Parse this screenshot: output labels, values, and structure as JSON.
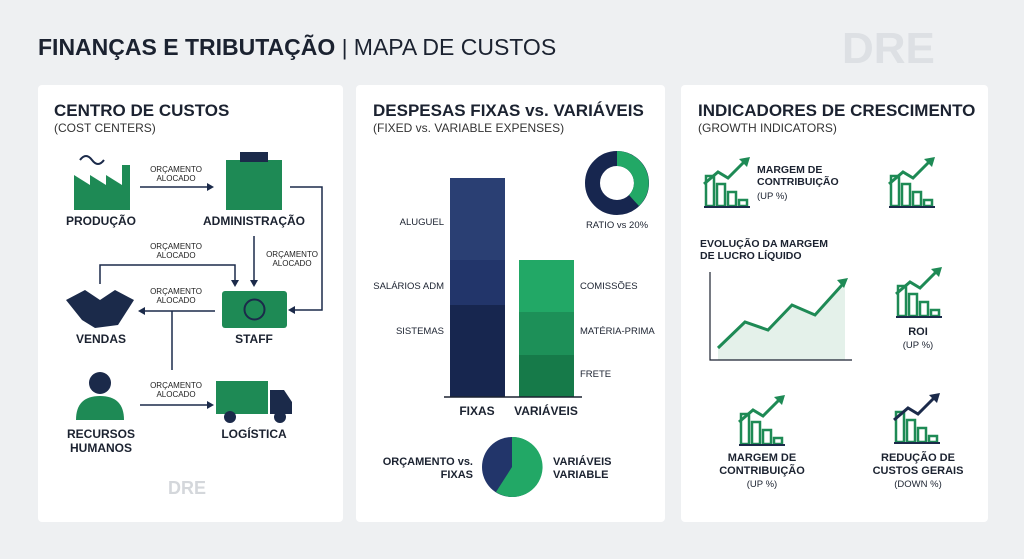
{
  "header": {
    "title": "FINANÇAS E TRIBUTAÇÃO",
    "subtitle": "MAPA DE CUSTOS",
    "logo": "DRE"
  },
  "panels": [
    {
      "title": "CENTRO DE CUSTOS",
      "subtitle": "(COST CENTERS)",
      "nodes": [
        {
          "label": "PRODUÇÃO"
        },
        {
          "label": "ADMINISTRAÇÃO"
        },
        {
          "label": "VENDAS"
        },
        {
          "label": "STAFF"
        },
        {
          "label": "RECURSOS HUMANOS"
        },
        {
          "label": "LOGÍSTICA"
        }
      ],
      "edges": [
        {
          "label": "ORÇAMENTO ALOCADO"
        },
        {
          "label": "ORÇAMENTO ALOCADO"
        },
        {
          "label": "ORÇAMENTO ALOCADO"
        },
        {
          "label": "ORÇAMENTO ALOCADO"
        },
        {
          "label": "ORÇAMENTO ALOCADO"
        }
      ],
      "logo": "DRE"
    },
    {
      "title": "DESPESAS FIXAS vs. VARIÁVEIS",
      "subtitle": "(FIXED vs. VARIABLE EXPENSES)",
      "fixed_items": [
        "ALUGUEL",
        "SALÁRIOS ADM",
        "SISTEMAS"
      ],
      "variable_items": [
        "COMISSÕES",
        "MATÉRIA-PRIMA",
        "FRETE"
      ],
      "categories": [
        "FIXAS",
        "VARIÁVEIS"
      ],
      "donut_label": "RATIO vs 20%",
      "pie_left": "ORÇAMENTO vs. FIXAS",
      "pie_right": "VARIÁVEIS VARIABLE"
    },
    {
      "title": "INDICADORES DE CRESCIMENTO",
      "subtitle": "(GROWTH INDICATORS)",
      "chart_title": "EVOLUÇÃO DA MARGEM DE LUCRO LÍQUIDO",
      "indicators": [
        {
          "label": "MARGEM DE CONTRIBUIÇÃO",
          "note": "(UP %)"
        },
        {
          "label": "ROI",
          "note": "(UP %)"
        },
        {
          "label": "MARGEM DE CONTRIBUIÇÃO",
          "note": "(UP %)"
        },
        {
          "label": "REDUÇÃO DE CUSTOS GERAIS",
          "note": "(DOWN %)"
        }
      ]
    }
  ]
}
